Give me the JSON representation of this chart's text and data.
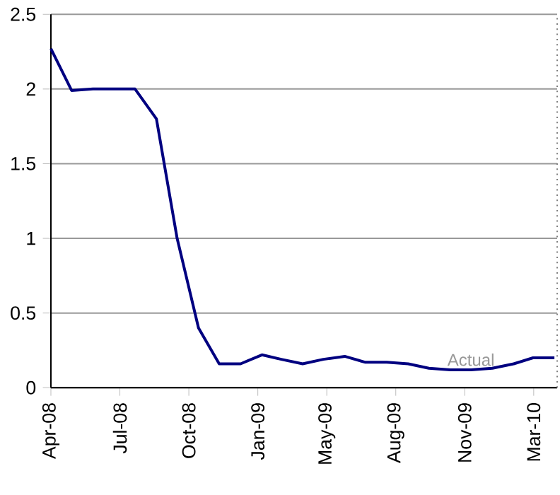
{
  "chart_data": {
    "type": "line",
    "x": [
      "2008-04-01",
      "2008-05-01",
      "2008-06-01",
      "2008-07-01",
      "2008-08-01",
      "2008-09-01",
      "2008-10-01",
      "2008-11-01",
      "2008-12-01",
      "2009-01-01",
      "2009-02-01",
      "2009-03-01",
      "2009-04-01",
      "2009-05-01",
      "2009-06-01",
      "2009-07-01",
      "2009-08-01",
      "2009-09-01",
      "2009-10-01",
      "2009-11-01",
      "2009-12-01",
      "2010-01-01",
      "2010-02-01",
      "2010-03-01",
      "2010-04-01"
    ],
    "series": [
      {
        "color": "#000080",
        "values": [
          2.27,
          1.99,
          2.0,
          2.0,
          2.0,
          1.8,
          1.0,
          0.4,
          0.16,
          0.16,
          0.22,
          0.19,
          0.16,
          0.19,
          0.21,
          0.17,
          0.17,
          0.16,
          0.13,
          0.12,
          0.12,
          0.13,
          0.16,
          0.2,
          0.2
        ]
      }
    ],
    "xlim": [
      "2008-04-01",
      "2010-04-05"
    ],
    "xticks": [
      {
        "value": "2008-04-01",
        "label": "Apr-08"
      },
      {
        "value": "2008-07-10",
        "label": "Jul-08"
      },
      {
        "value": "2008-10-18",
        "label": "Oct-08"
      },
      {
        "value": "2009-01-26",
        "label": "Jan-09"
      },
      {
        "value": "2009-05-06",
        "label": "May-09"
      },
      {
        "value": "2009-08-14",
        "label": "Aug-09"
      },
      {
        "value": "2009-11-22",
        "label": "Nov-09"
      },
      {
        "value": "2010-03-02",
        "label": "Mar-10"
      }
    ],
    "ylim": [
      0,
      2.5
    ],
    "yticks": [
      0,
      0.5,
      1,
      1.5,
      2,
      2.5
    ],
    "grid": "y",
    "marker": "none",
    "line_style": "solid",
    "annotations": [
      "Actual"
    ]
  }
}
